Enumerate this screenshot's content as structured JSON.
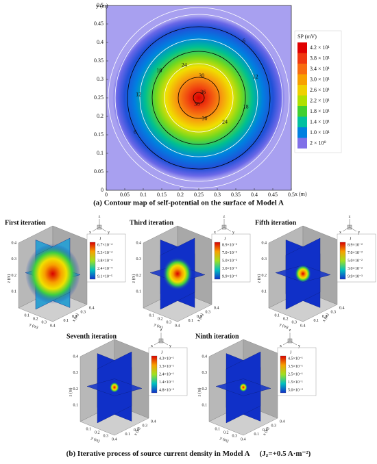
{
  "panel_a": {
    "y_axis_label": "y (m)",
    "x_axis_label": "x (m)",
    "xticks": [
      0,
      0.05,
      0.1,
      0.15,
      0.2,
      0.25,
      0.3,
      0.35,
      0.4,
      0.45,
      0.5
    ],
    "yticks": [
      0,
      0.05,
      0.1,
      0.15,
      0.2,
      0.25,
      0.3,
      0.35,
      0.4,
      0.45,
      0.5
    ],
    "colorbar_title": "SP (mV)",
    "colorbar_labels": [
      "4.2 × 10¹",
      "3.8 × 10¹",
      "3.4 × 10¹",
      "3.0 × 10¹",
      "2.6 × 10¹",
      "2.2 × 10¹",
      "1.8 × 10¹",
      "1.4 × 10¹",
      "1.0 × 10¹",
      "2 × 10⁰"
    ],
    "contour_labels": [
      "6",
      "12",
      "18",
      "24",
      "30",
      "36"
    ],
    "caption": "(a) Contour map of self-potential on the surface of Model A"
  },
  "panel_b": {
    "colorbar_title": "J",
    "axis_ticks": [
      0.1,
      0.2,
      0.3,
      0.4
    ],
    "z_axis_label": "z (m)",
    "y_axis_label": "y (m)",
    "x_axis_label": "x (m)",
    "triad_labels": [
      "z",
      "y",
      "x"
    ],
    "plots": [
      {
        "title": "First iteration",
        "colorbar_labels": [
          "6.7×10⁻⁴",
          "5.3×10⁻⁴",
          "3.8×10⁻⁴",
          "2.4×10⁻⁴",
          "9.1×10⁻⁵"
        ]
      },
      {
        "title": "Third iteration",
        "colorbar_labels": [
          "8.9×10⁻³",
          "7.0×10⁻³",
          "5.0×10⁻³",
          "3.0×10⁻³",
          "9.9×10⁻⁴"
        ]
      },
      {
        "title": "Fifth iteration",
        "colorbar_labels": [
          "8.9×10⁻²",
          "7.0×10⁻²",
          "5.0×10⁻²",
          "3.0×10⁻²",
          "9.9×10⁻³"
        ]
      },
      {
        "title": "Seventh iteration",
        "colorbar_labels": [
          "4.3×10⁻¹",
          "3.3×10⁻¹",
          "2.4×10⁻¹",
          "1.4×10⁻¹",
          "4.8×10⁻²"
        ]
      },
      {
        "title": "Ninth iteration",
        "colorbar_labels": [
          "4.5×10⁻¹",
          "3.5×10⁻¹",
          "2.5×10⁻¹",
          "1.5×10⁻¹",
          "5.0×10⁻²"
        ]
      }
    ],
    "caption": "(b) Iterative process of source current density in Model A",
    "condition_parts": [
      "(J",
      "z",
      "=+0.5 A·m⁻²)"
    ]
  }
}
